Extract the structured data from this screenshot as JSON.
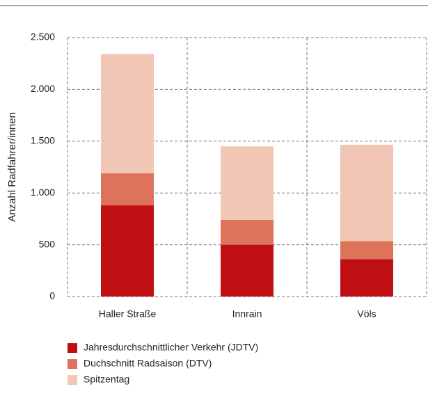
{
  "chart_data": {
    "type": "stacked_bar",
    "y_label": "Anzahl Radfahrer/innen",
    "categories": [
      "Haller Straße",
      "Innrain",
      "Völs"
    ],
    "series": [
      {
        "name": "Jahresdurchschnittlicher Verkehr (JDTV)",
        "color": "#c00f12",
        "values": [
          880,
          500,
          360
        ]
      },
      {
        "name": "Duchschnitt Radsaison (DTV)",
        "color": "#dc735a",
        "values": [
          310,
          240,
          175
        ]
      },
      {
        "name": "Spitzentag",
        "color": "#f2c6b4",
        "values": [
          1150,
          710,
          930
        ]
      }
    ],
    "ylim": [
      0,
      2500
    ],
    "yticks": [
      0,
      500,
      {
        "value": 1000,
        "label": "1.000"
      },
      {
        "value": 1500,
        "label": "1.500"
      },
      {
        "value": 2000,
        "label": "2.000"
      },
      {
        "value": 2500,
        "label": "2.500"
      }
    ],
    "grid": true,
    "legend": "bottom"
  }
}
